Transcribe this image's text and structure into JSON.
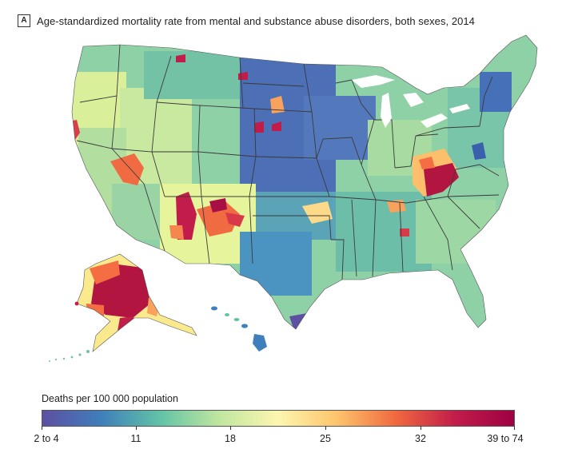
{
  "header": {
    "panel_label": "A",
    "title": "Age-standardized mortality rate from mental and substance abuse disorders, both sexes, 2014"
  },
  "legend": {
    "title": "Deaths per 100 000 population",
    "ticks": [
      "2 to 4",
      "11",
      "18",
      "25",
      "32",
      "39 to 74"
    ],
    "colors": [
      "#5e4fa2",
      "#3f7fbb",
      "#62c3a6",
      "#c0e6a0",
      "#fdf6b0",
      "#fdc46b",
      "#f0683f",
      "#c21d4a",
      "#9e0142"
    ]
  },
  "map": {
    "colors": {
      "land_default": "#8fd1a6",
      "state_border": "#3a3a3a"
    }
  }
}
